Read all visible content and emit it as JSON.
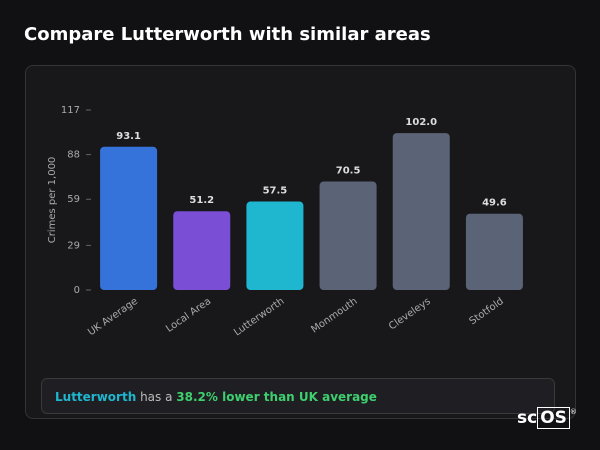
{
  "chart_data": {
    "type": "bar",
    "title": "Compare Lutterworth with similar areas",
    "y_label": "Crimes per 1,000",
    "categories": [
      "UK Average",
      "Local Area",
      "Lutterworth",
      "Monmouth",
      "Cleveleys",
      "Stotfold"
    ],
    "values": [
      93.1,
      51.2,
      57.5,
      70.5,
      102.0,
      49.6
    ],
    "value_labels": [
      "93.1",
      "51.2",
      "57.5",
      "70.5",
      "102.0",
      "49.6"
    ],
    "colors": [
      "#3573db",
      "#7a4fd6",
      "#1fb7cf",
      "#5b6477",
      "#5b6477",
      "#5b6477"
    ],
    "ylim": [
      0,
      117
    ],
    "yticks": [
      0,
      29,
      59,
      88,
      117
    ],
    "grid": false
  },
  "summary": {
    "area": "Lutterworth",
    "text": "has a",
    "comparison": "38.2% lower than UK average"
  },
  "logo": {
    "prefix": "sc",
    "boxed": "OS",
    "mark": "®"
  }
}
